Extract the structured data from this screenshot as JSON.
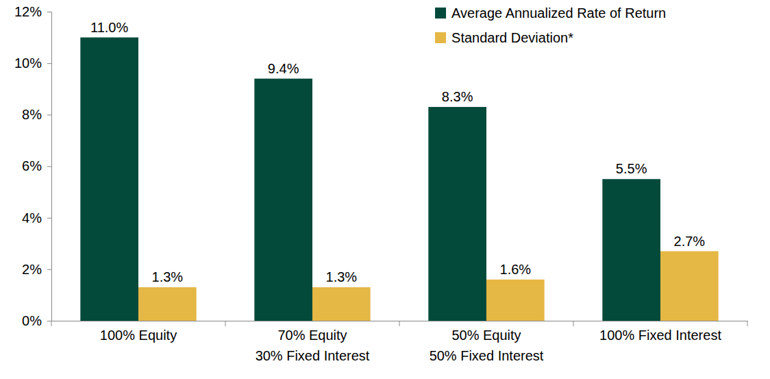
{
  "chart_data": {
    "type": "bar",
    "categories": [
      "100% Equity",
      "70% Equity\n30% Fixed Interest",
      "50% Equity\n50% Fixed Interest",
      "100% Fixed Interest"
    ],
    "series": [
      {
        "name": "Average Annualized Rate of Return",
        "color": "#034a3b",
        "values": [
          11.0,
          9.4,
          8.3,
          5.5
        ],
        "value_labels": [
          "11.0%",
          "9.4%",
          "8.3%",
          "5.5%"
        ]
      },
      {
        "name": "Standard Deviation*",
        "color": "#e5b745",
        "values": [
          1.3,
          1.3,
          1.6,
          2.7
        ],
        "value_labels": [
          "1.3%",
          "1.3%",
          "1.6%",
          "2.7%"
        ]
      }
    ],
    "ylim": [
      0,
      12
    ],
    "yticks": [
      {
        "value": 0,
        "label": "0%"
      },
      {
        "value": 2,
        "label": "2%"
      },
      {
        "value": 4,
        "label": "4%"
      },
      {
        "value": 6,
        "label": "6%"
      },
      {
        "value": 8,
        "label": "8%"
      },
      {
        "value": 10,
        "label": "10%"
      },
      {
        "value": 12,
        "label": "12%"
      }
    ],
    "grid": false,
    "data_labels": true,
    "legend": "upper right"
  }
}
